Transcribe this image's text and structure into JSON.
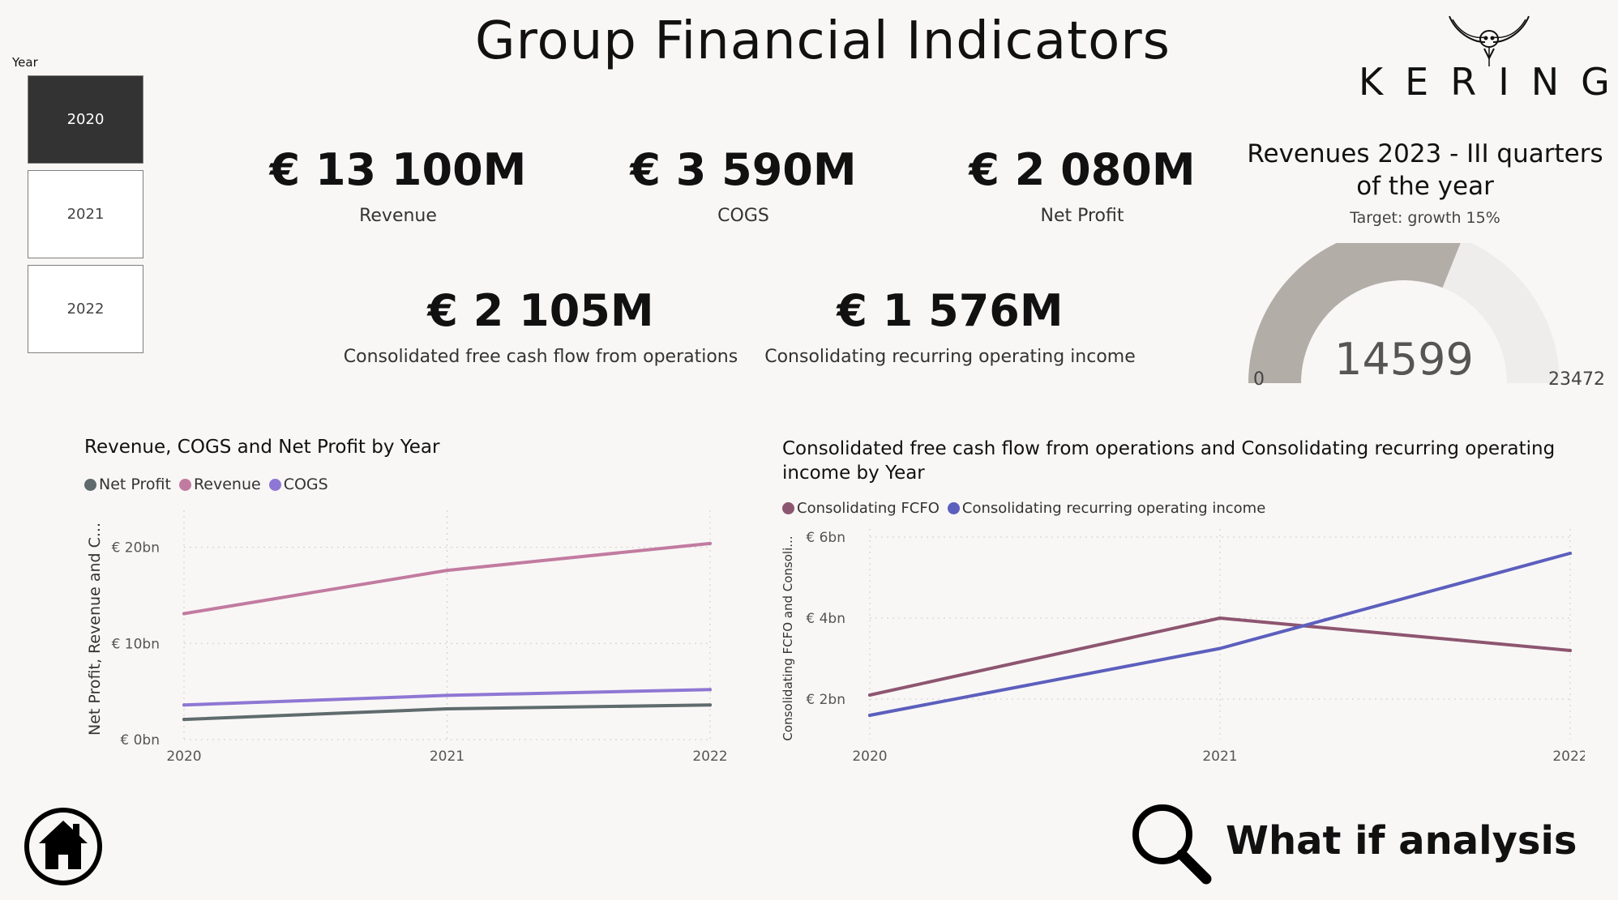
{
  "title": "Group Financial Indicators",
  "slicer": {
    "label": "Year",
    "options": [
      "2020",
      "2021",
      "2022"
    ],
    "selected": "2020"
  },
  "kpis": [
    {
      "value": "€ 13 100M",
      "label": "Revenue"
    },
    {
      "value": "€ 3 590M",
      "label": "COGS"
    },
    {
      "value": "€ 2 080M",
      "label": "Net Profit"
    },
    {
      "value": "€ 2 105M",
      "label": "Consolidated free cash flow from operations"
    },
    {
      "value": "€ 1 576M",
      "label": "Consolidating recurring operating income"
    }
  ],
  "logo": {
    "text": "KERING"
  },
  "gauge": {
    "title": "Revenues 2023 - III quarters of the year",
    "subtitle": "Target: growth 15%",
    "value": 14599,
    "value_label": "14599",
    "min": 0,
    "min_label": "0",
    "max": 23472,
    "max_label": "23472",
    "fill_color": "#b3ada8",
    "track_color": "#efedeb"
  },
  "chart_data": [
    {
      "type": "line",
      "title": "Revenue, COGS and Net Profit by Year",
      "ylabel": "Net Profit, Revenue and C...",
      "x": [
        "2020",
        "2021",
        "2022"
      ],
      "ylim": [
        0,
        23
      ],
      "yticks": [
        0,
        10,
        20
      ],
      "ytick_labels": [
        "€ 0bn",
        "€ 10bn",
        "€ 20bn"
      ],
      "grid": true,
      "legend": "top-left",
      "series": [
        {
          "name": "Net Profit",
          "color": "#5f6b6d",
          "values": [
            2.1,
            3.2,
            3.6
          ]
        },
        {
          "name": "Revenue",
          "color": "#c27ba0",
          "values": [
            13.1,
            17.6,
            20.4
          ]
        },
        {
          "name": "COGS",
          "color": "#8e77d4",
          "values": [
            3.6,
            4.6,
            5.2
          ]
        }
      ]
    },
    {
      "type": "line",
      "title": "Consolidated free cash flow from operations and Consolidating recurring operating income by Year",
      "ylabel": "Consolidating FCFO and Consoli...",
      "x": [
        "2020",
        "2021",
        "2022"
      ],
      "ylim": [
        1,
        6
      ],
      "yticks": [
        2,
        4,
        6
      ],
      "ytick_labels": [
        "€ 2bn",
        "€ 4bn",
        "€ 6bn"
      ],
      "grid": true,
      "legend": "top-left",
      "series": [
        {
          "name": "Consolidating FCFO",
          "color": "#8d5670",
          "values": [
            2.1,
            4.0,
            3.2
          ]
        },
        {
          "name": "Consolidating recurring operating income",
          "color": "#5c5fbd",
          "values": [
            1.6,
            3.25,
            5.6
          ]
        }
      ]
    }
  ],
  "whatif": {
    "label": "What if analysis"
  },
  "icons": {
    "home": "home-icon",
    "search": "magnifier-icon",
    "logo": "owl-logo-icon"
  }
}
